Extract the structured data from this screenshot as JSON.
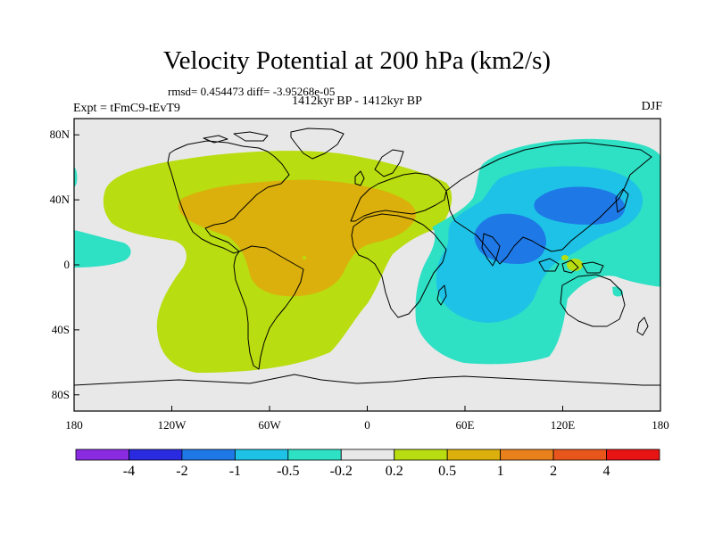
{
  "title": "Velocity Potential at 200 hPa (km2/s)",
  "stats": "rmsd= 0.454473 diff= -3.95268e-05",
  "subtitle": "1412kyr BP - 1412kyr BP",
  "experiment": "Expt = tFmC9-tEvT9",
  "season": "DJF",
  "map": {
    "lon_range": [
      -180,
      180
    ],
    "lat_range": [
      -90,
      90
    ],
    "lat_ticks": [
      {
        "value": 80,
        "label": "80N"
      },
      {
        "value": 40,
        "label": "40N"
      },
      {
        "value": 0,
        "label": "0"
      },
      {
        "value": -40,
        "label": "40S"
      },
      {
        "value": -80,
        "label": "80S"
      }
    ],
    "lon_ticks": [
      {
        "value": -180,
        "label": "180"
      },
      {
        "value": -120,
        "label": "120W"
      },
      {
        "value": -60,
        "label": "60W"
      },
      {
        "value": 0,
        "label": "0"
      },
      {
        "value": 60,
        "label": "60E"
      },
      {
        "value": 120,
        "label": "120E"
      },
      {
        "value": 180,
        "label": "180"
      }
    ]
  },
  "colorbar": {
    "colors": [
      "#8a2be2",
      "#2a2ae0",
      "#1e78e6",
      "#1ec2e6",
      "#2ee0c4",
      "#e8e8e8",
      "#b8dd10",
      "#dcb00c",
      "#e8801c",
      "#e8561c",
      "#e81414"
    ],
    "labels": [
      "-4",
      "-2",
      "-1",
      "-0.5",
      "-0.2",
      "0.2",
      "0.5",
      "1",
      "2",
      "4"
    ]
  },
  "colors": {
    "background": "#e8e8e8",
    "positive_weak": "#b8dd10",
    "positive_mid": "#dcb00c",
    "negative_weak": "#2ee0c4",
    "negative_mid": "#1ec2e6",
    "negative_strong": "#1e78e6"
  }
}
